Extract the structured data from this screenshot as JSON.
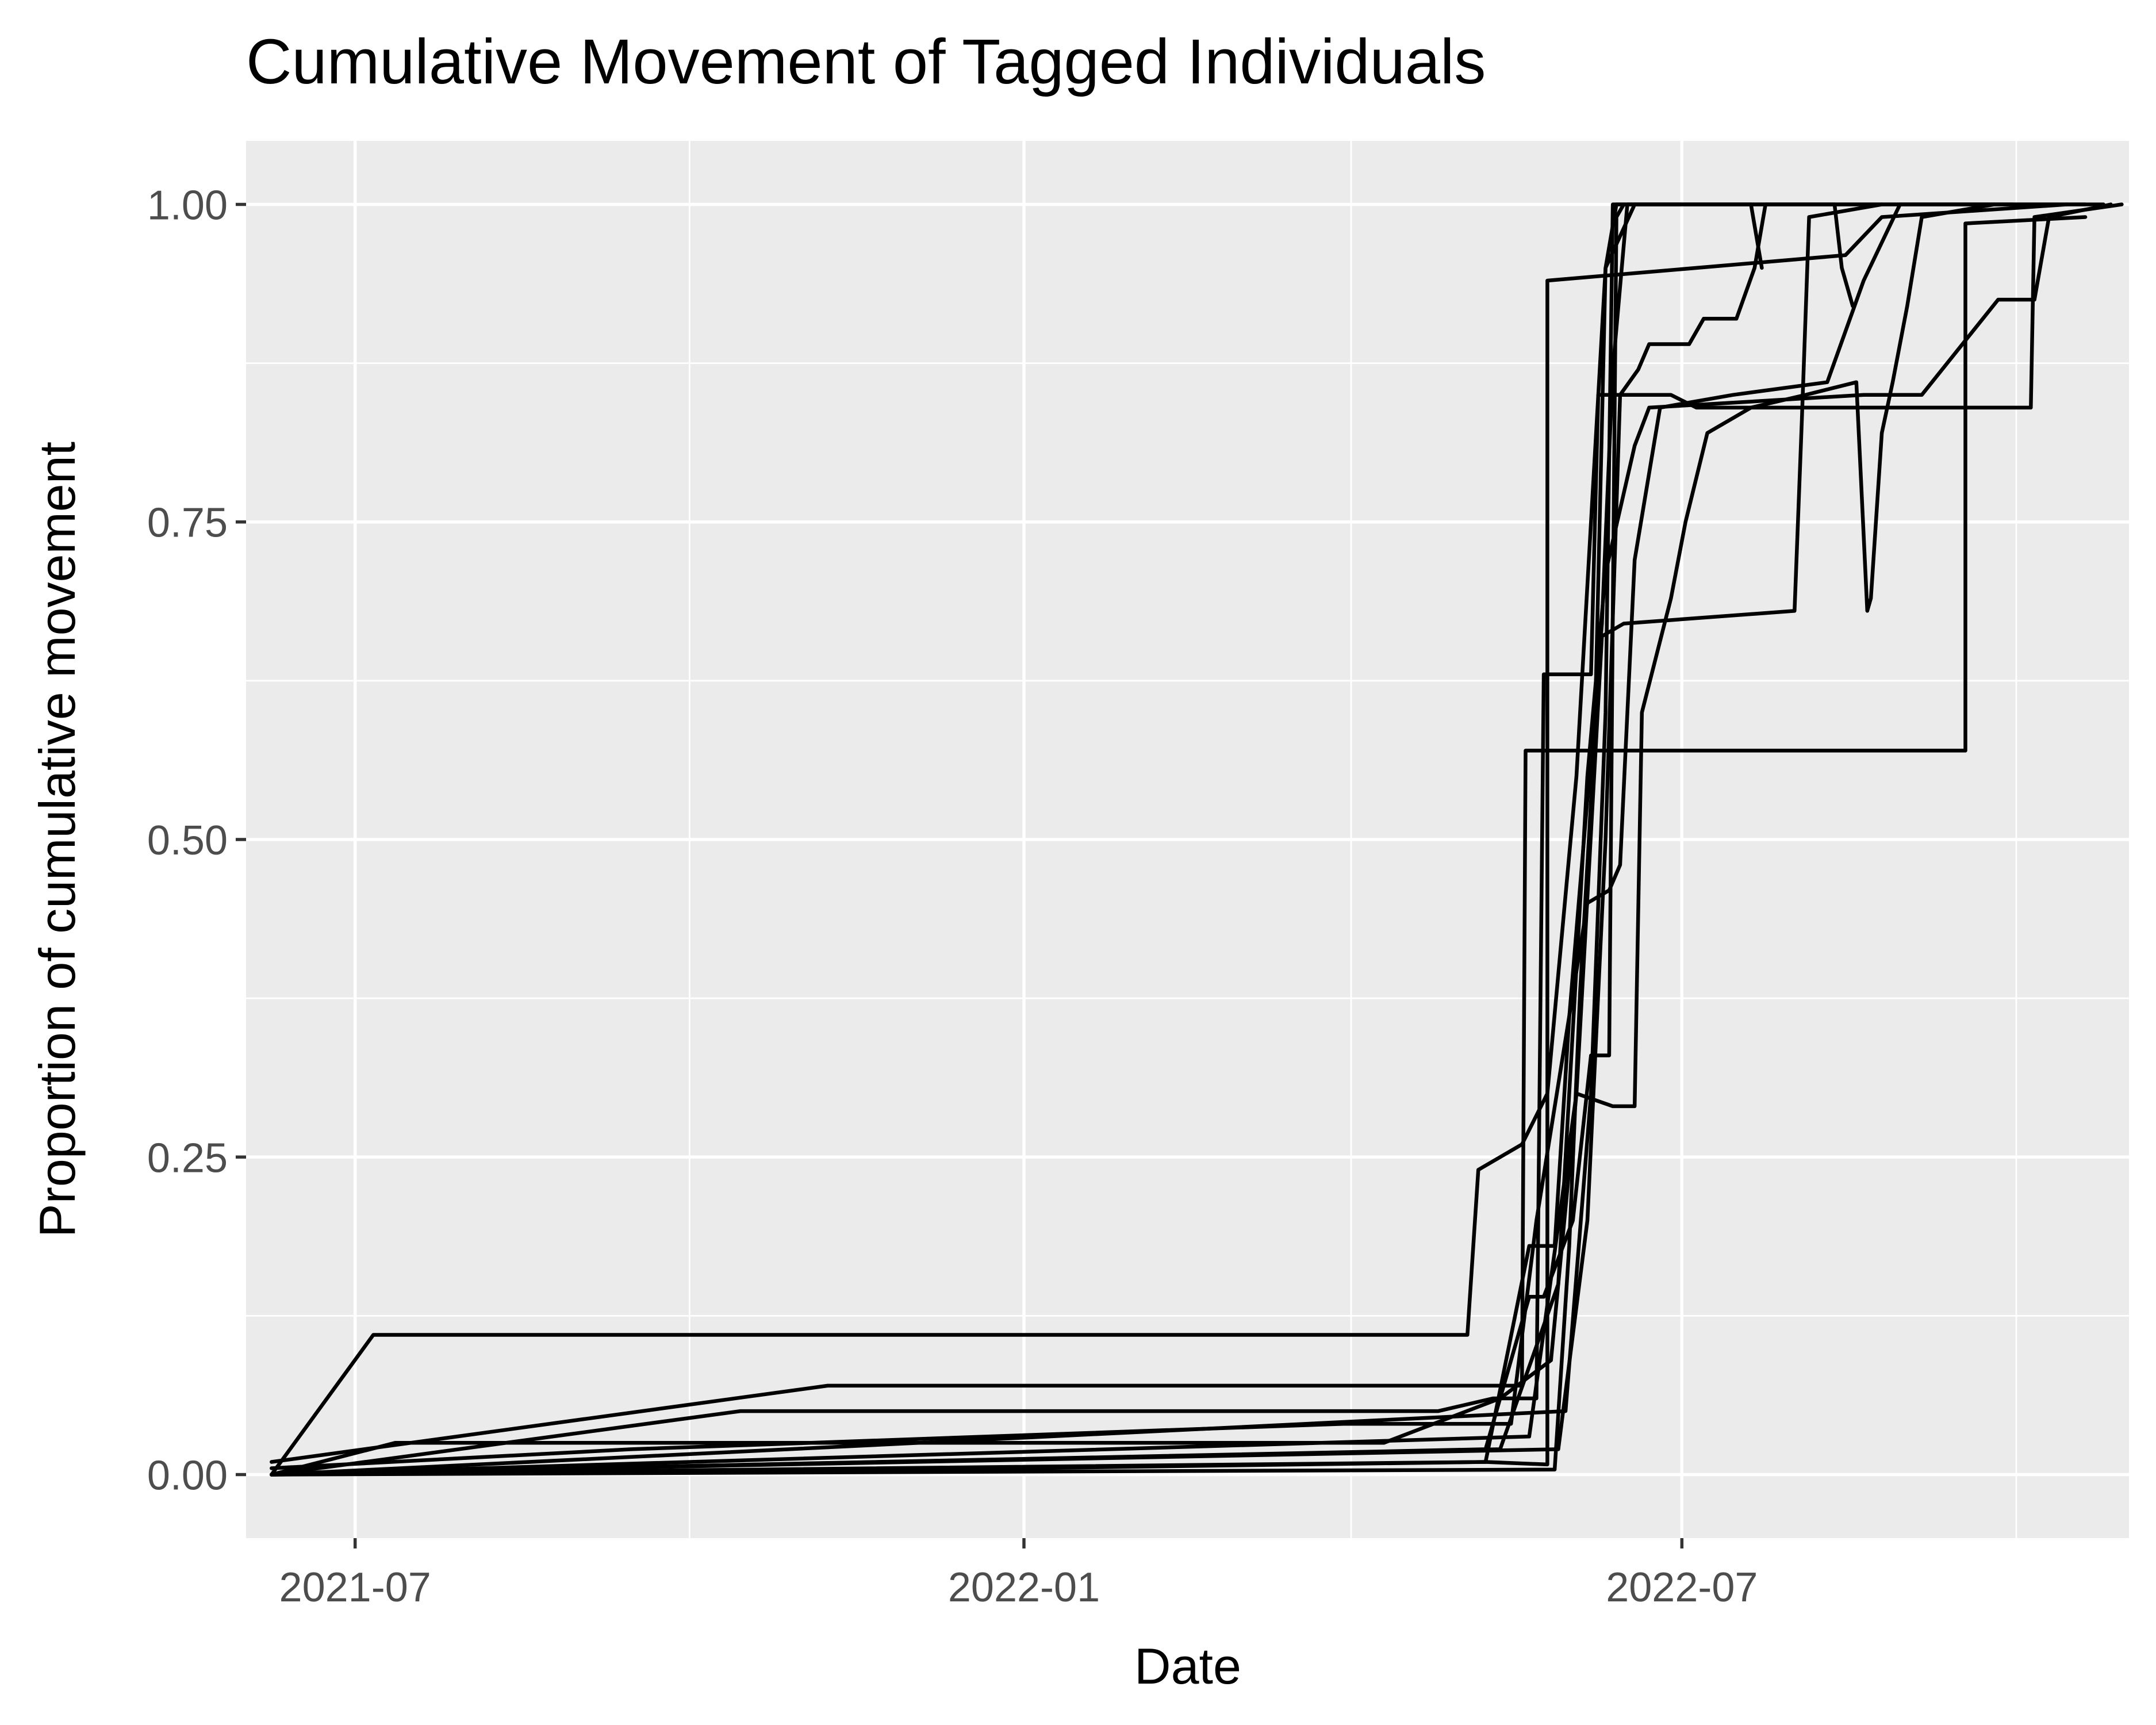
{
  "chart_data": {
    "type": "line",
    "title": "Cumulative Movement of Tagged Individuals",
    "xlabel": "Date",
    "ylabel": "Proportion of cumulative movement",
    "x_type": "date",
    "xlim": [
      "2021-06-01",
      "2022-11-01"
    ],
    "ylim": [
      -0.05,
      1.05
    ],
    "x_ticks": [
      {
        "label": "2021-07",
        "date": "2021-07-01"
      },
      {
        "label": "2022-01",
        "date": "2022-01-01"
      },
      {
        "label": "2022-07",
        "date": "2022-07-01"
      }
    ],
    "x_minor_ticks": [
      "2021-10-01",
      "2022-04-01",
      "2022-10-01"
    ],
    "y_ticks": [
      {
        "label": "0.00",
        "value": 0
      },
      {
        "label": "0.25",
        "value": 0.25
      },
      {
        "label": "0.50",
        "value": 0.5
      },
      {
        "label": "0.75",
        "value": 0.75
      },
      {
        "label": "1.00",
        "value": 1
      }
    ],
    "y_minor_ticks": [
      0.125,
      0.375,
      0.625,
      0.875
    ],
    "grid": true,
    "legend": "none",
    "series": [
      {
        "points": [
          [
            "2021-06-08",
            0.0
          ],
          [
            "2021-07-06",
            0.11
          ],
          [
            "2022-05-03",
            0.11
          ],
          [
            "2022-05-06",
            0.24
          ],
          [
            "2022-05-18",
            0.26
          ],
          [
            "2022-05-25",
            0.3
          ],
          [
            "2022-06-02",
            0.55
          ],
          [
            "2022-06-10",
            0.95
          ],
          [
            "2022-06-18",
            1.0
          ],
          [
            "2022-09-30",
            1.0
          ]
        ]
      },
      {
        "points": [
          [
            "2021-06-08",
            0.0
          ],
          [
            "2021-12-31",
            0.005
          ],
          [
            "2022-05-08",
            0.01
          ],
          [
            "2022-05-25",
            0.008
          ],
          [
            "2022-05-25",
            0.94
          ],
          [
            "2022-08-15",
            0.96
          ],
          [
            "2022-08-25",
            0.99
          ],
          [
            "2022-10-15",
            1.0
          ]
        ]
      },
      {
        "points": [
          [
            "2021-06-08",
            0.01
          ],
          [
            "2021-11-08",
            0.07
          ],
          [
            "2022-05-18",
            0.07
          ],
          [
            "2022-05-19",
            0.57
          ],
          [
            "2022-09-17",
            0.57
          ],
          [
            "2022-09-17",
            0.985
          ],
          [
            "2022-10-20",
            0.99
          ]
        ]
      },
      {
        "points": [
          [
            "2021-06-08",
            0.0
          ],
          [
            "2021-10-15",
            0.05
          ],
          [
            "2022-04-25",
            0.05
          ],
          [
            "2022-05-10",
            0.06
          ],
          [
            "2022-05-22",
            0.06
          ],
          [
            "2022-05-24",
            0.63
          ],
          [
            "2022-06-06",
            0.63
          ],
          [
            "2022-06-08",
            0.85
          ],
          [
            "2022-06-28",
            0.85
          ],
          [
            "2022-07-05",
            0.84
          ],
          [
            "2022-10-05",
            0.84
          ],
          [
            "2022-10-06",
            0.99
          ],
          [
            "2022-10-30",
            1.0
          ]
        ]
      },
      {
        "points": [
          [
            "2021-06-08",
            0.0
          ],
          [
            "2021-07-12",
            0.025
          ],
          [
            "2022-04-10",
            0.025
          ],
          [
            "2022-05-12",
            0.06
          ],
          [
            "2022-05-26",
            0.09
          ],
          [
            "2022-06-02",
            0.3
          ],
          [
            "2022-06-09",
            0.66
          ],
          [
            "2022-06-15",
            0.67
          ],
          [
            "2022-08-01",
            0.68
          ],
          [
            "2022-08-03",
            0.83
          ],
          [
            "2022-08-05",
            0.99
          ],
          [
            "2022-08-25",
            1.0
          ]
        ]
      },
      {
        "points": [
          [
            "2021-06-08",
            0.005
          ],
          [
            "2021-09-15",
            0.02
          ],
          [
            "2022-03-30",
            0.04
          ],
          [
            "2022-05-15",
            0.04
          ],
          [
            "2022-05-22",
            0.2
          ],
          [
            "2022-06-05",
            0.45
          ],
          [
            "2022-06-11",
            0.46
          ],
          [
            "2022-06-14",
            0.48
          ],
          [
            "2022-06-18",
            0.72
          ],
          [
            "2022-06-25",
            0.84
          ],
          [
            "2022-07-15",
            0.85
          ],
          [
            "2022-08-10",
            0.86
          ],
          [
            "2022-08-20",
            0.94
          ],
          [
            "2022-08-30",
            1.0
          ],
          [
            "2022-10-25",
            1.0
          ]
        ]
      },
      {
        "points": [
          [
            "2021-06-08",
            0.0
          ],
          [
            "2022-05-12",
            0.02
          ],
          [
            "2022-05-28",
            0.15
          ],
          [
            "2022-06-05",
            0.55
          ],
          [
            "2022-06-10",
            0.71
          ],
          [
            "2022-06-18",
            0.81
          ],
          [
            "2022-06-22",
            0.84
          ],
          [
            "2022-08-20",
            0.85
          ],
          [
            "2022-09-05",
            0.85
          ],
          [
            "2022-09-26",
            0.925
          ],
          [
            "2022-10-06",
            0.925
          ],
          [
            "2022-10-10",
            0.99
          ],
          [
            "2022-10-27",
            1.0
          ]
        ]
      },
      {
        "points": [
          [
            "2021-06-08",
            0.0
          ],
          [
            "2022-05-20",
            0.03
          ],
          [
            "2022-06-02",
            0.3
          ],
          [
            "2022-06-12",
            0.29
          ],
          [
            "2022-06-18",
            0.29
          ],
          [
            "2022-06-20",
            0.6
          ],
          [
            "2022-06-28",
            0.69
          ],
          [
            "2022-07-02",
            0.75
          ],
          [
            "2022-07-08",
            0.82
          ],
          [
            "2022-07-20",
            0.84
          ],
          [
            "2022-08-04",
            0.85
          ],
          [
            "2022-08-18",
            0.86
          ],
          [
            "2022-08-21",
            0.68
          ],
          [
            "2022-08-22",
            0.69
          ],
          [
            "2022-08-25",
            0.82
          ],
          [
            "2022-08-28",
            0.86
          ],
          [
            "2022-09-01",
            0.92
          ],
          [
            "2022-09-05",
            0.99
          ],
          [
            "2022-09-25",
            1.0
          ]
        ]
      },
      {
        "points": [
          [
            "2021-06-08",
            0.0
          ],
          [
            "2022-05-28",
            0.02
          ],
          [
            "2022-06-05",
            0.2
          ],
          [
            "2022-06-10",
            0.5
          ],
          [
            "2022-06-14",
            0.85
          ],
          [
            "2022-06-19",
            0.87
          ],
          [
            "2022-06-22",
            0.89
          ],
          [
            "2022-07-03",
            0.89
          ],
          [
            "2022-07-07",
            0.91
          ],
          [
            "2022-07-16",
            0.91
          ],
          [
            "2022-07-21",
            0.95
          ],
          [
            "2022-07-24",
            1.0
          ],
          [
            "2022-10-20",
            1.0
          ]
        ]
      },
      {
        "points": [
          [
            "2021-06-08",
            0.0
          ],
          [
            "2022-05-30",
            0.05
          ],
          [
            "2022-06-06",
            0.3
          ],
          [
            "2022-06-10",
            0.6
          ],
          [
            "2022-06-12",
            1.0
          ],
          [
            "2022-08-12",
            1.0
          ],
          [
            "2022-08-14",
            0.95
          ],
          [
            "2022-08-17",
            0.92
          ]
        ]
      },
      {
        "points": [
          [
            "2021-06-08",
            0.0
          ],
          [
            "2022-05-27",
            0.004
          ],
          [
            "2022-05-31",
            0.18
          ],
          [
            "2022-06-03",
            0.38
          ],
          [
            "2022-06-07",
            0.58
          ],
          [
            "2022-06-10",
            0.95
          ],
          [
            "2022-06-13",
            1.0
          ],
          [
            "2022-07-20",
            1.0
          ],
          [
            "2022-07-23",
            0.95
          ]
        ]
      },
      {
        "points": [
          [
            "2021-06-08",
            0.0
          ],
          [
            "2022-05-08",
            0.01
          ],
          [
            "2022-05-20",
            0.18
          ],
          [
            "2022-05-27",
            0.18
          ],
          [
            "2022-05-31",
            0.36
          ],
          [
            "2022-06-09",
            0.67
          ],
          [
            "2022-06-12",
            0.87
          ],
          [
            "2022-06-16",
            1.0
          ],
          [
            "2022-07-01",
            1.0
          ]
        ]
      },
      {
        "points": [
          [
            "2021-06-08",
            0.0
          ],
          [
            "2022-05-08",
            0.02
          ],
          [
            "2022-05-20",
            0.14
          ],
          [
            "2022-05-24",
            0.14
          ],
          [
            "2022-06-01",
            0.2
          ],
          [
            "2022-06-06",
            0.33
          ],
          [
            "2022-06-11",
            0.33
          ],
          [
            "2022-06-12",
            0.68
          ],
          [
            "2022-06-13",
            0.99
          ],
          [
            "2022-06-15",
            1.0
          ]
        ]
      }
    ]
  }
}
